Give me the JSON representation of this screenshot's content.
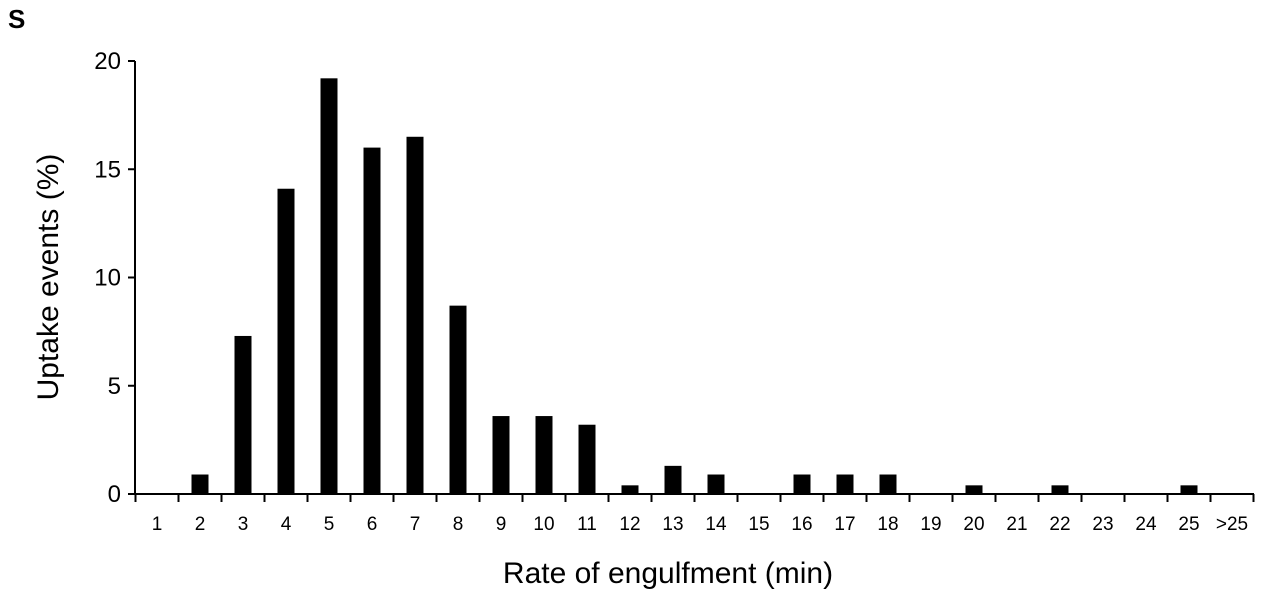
{
  "panel_label": "S",
  "chart_data": {
    "type": "bar",
    "title": "",
    "xlabel": "Rate of engulfment (min)",
    "ylabel": "Uptake events (%)",
    "ylim": [
      0,
      20
    ],
    "yticks": [
      0,
      5,
      10,
      15,
      20
    ],
    "categories": [
      "1",
      "2",
      "3",
      "4",
      "5",
      "6",
      "7",
      "8",
      "9",
      "10",
      "11",
      "12",
      "13",
      "14",
      "15",
      "16",
      "17",
      "18",
      "19",
      "20",
      "21",
      "22",
      "23",
      "24",
      "25",
      ">25"
    ],
    "values": [
      0,
      0.9,
      7.3,
      14.1,
      19.2,
      16.0,
      16.5,
      8.7,
      3.6,
      3.6,
      3.2,
      0.4,
      1.3,
      0.9,
      0,
      0.9,
      0.9,
      0.9,
      0,
      0.4,
      0,
      0.4,
      0,
      0,
      0.4,
      0
    ],
    "grid": false,
    "bar_color": "#000000"
  }
}
